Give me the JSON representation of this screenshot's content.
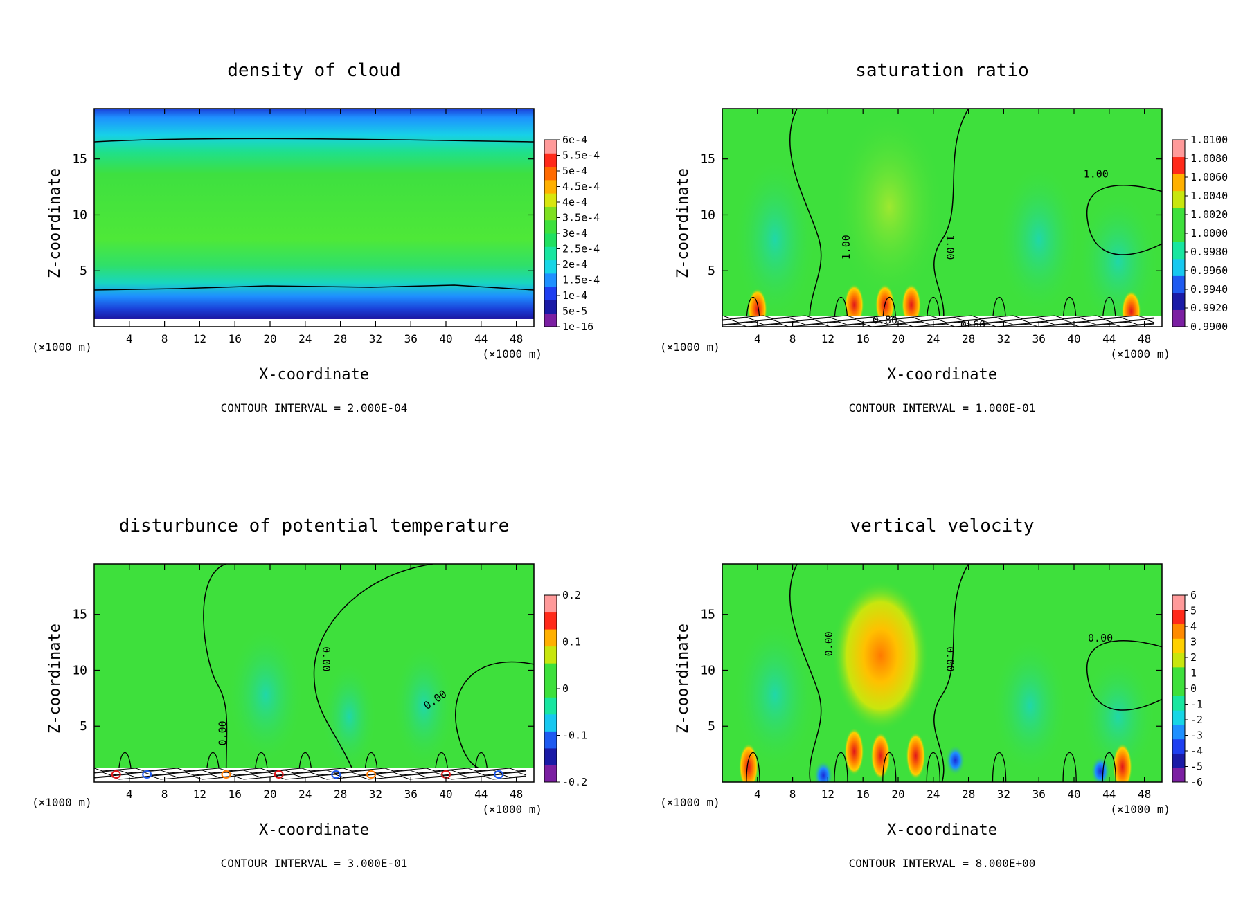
{
  "chart_data": [
    {
      "type": "heatmap",
      "title": "density of cloud",
      "xlabel": "X-coordinate",
      "ylabel": "Z-coordinate",
      "x_unit": "(×1000 m)",
      "xlim": [
        0,
        50
      ],
      "ylim": [
        0,
        19.5
      ],
      "x_ticks": [
        4,
        8,
        12,
        16,
        20,
        24,
        28,
        32,
        36,
        40,
        44,
        48
      ],
      "y_ticks": [
        5,
        10,
        15
      ],
      "footer": "CONTOUR INTERVAL = 2.000E-04",
      "colorbar": {
        "labels": [
          "6e-4",
          "5.5e-4",
          "5e-4",
          "4.5e-4",
          "4e-4",
          "3.5e-4",
          "3e-4",
          "2.5e-4",
          "2e-4",
          "1.5e-4",
          "1e-4",
          "5e-5",
          "1e-16"
        ],
        "colors": [
          "#7b1fa2",
          "#1a1aa6",
          "#1e3ff0",
          "#1e90ff",
          "#17d6e6",
          "#18e6a0",
          "#20e060",
          "#3ee03c",
          "#7fe020",
          "#d8e60e",
          "#ffb000",
          "#ff6a00",
          "#ff2a1a",
          "#ff9a9a"
        ]
      }
    },
    {
      "type": "heatmap",
      "title": "saturation ratio",
      "xlabel": "X-coordinate",
      "ylabel": "Z-coordinate",
      "x_unit": "(×1000 m)",
      "xlim": [
        0,
        50
      ],
      "ylim": [
        0,
        19.5
      ],
      "x_ticks": [
        4,
        8,
        12,
        16,
        20,
        24,
        28,
        32,
        36,
        40,
        44,
        48
      ],
      "y_ticks": [
        5,
        10,
        15
      ],
      "footer": "CONTOUR INTERVAL = 1.000E-01",
      "contour_labels": [
        "1.00",
        "1.00",
        "1.00",
        "0.80",
        "0.60"
      ],
      "colorbar": {
        "labels": [
          "1.0100",
          "1.0080",
          "1.0060",
          "1.0040",
          "1.0020",
          "1.0000",
          "0.9980",
          "0.9960",
          "0.9940",
          "0.9920",
          "0.9900"
        ],
        "colors": [
          "#7b1fa2",
          "#1a1aa6",
          "#1e5af0",
          "#17c8f0",
          "#18e6a0",
          "#3ee03c",
          "#3ee03c",
          "#c8e60e",
          "#ffb000",
          "#ff2a1a",
          "#ff9a9a"
        ]
      }
    },
    {
      "type": "heatmap",
      "title": "disturbunce of potential temperature",
      "xlabel": "X-coordinate",
      "ylabel": "Z-coordinate",
      "x_unit": "(×1000 m)",
      "xlim": [
        0,
        50
      ],
      "ylim": [
        0,
        19.5
      ],
      "x_ticks": [
        4,
        8,
        12,
        16,
        20,
        24,
        28,
        32,
        36,
        40,
        44,
        48
      ],
      "y_ticks": [
        5,
        10,
        15
      ],
      "footer": "CONTOUR INTERVAL = 3.000E-01",
      "contour_labels": [
        "0.00",
        "0.00",
        "0.00"
      ],
      "colorbar": {
        "labels": [
          "0.2",
          "0.1",
          "0",
          "-0.1",
          "-0.2"
        ],
        "colors": [
          "#7b1fa2",
          "#1a1aa6",
          "#1e5af0",
          "#17c8f0",
          "#18e6a0",
          "#3ee03c",
          "#3ee03c",
          "#c8e60e",
          "#ffb000",
          "#ff2a1a",
          "#ff9a9a"
        ]
      }
    },
    {
      "type": "heatmap",
      "title": "vertical velocity",
      "xlabel": "X-coordinate",
      "ylabel": "Z-coordinate",
      "x_unit": "(×1000 m)",
      "xlim": [
        0,
        50
      ],
      "ylim": [
        0,
        19.5
      ],
      "x_ticks": [
        4,
        8,
        12,
        16,
        20,
        24,
        28,
        32,
        36,
        40,
        44,
        48
      ],
      "y_ticks": [
        5,
        10,
        15
      ],
      "footer": "CONTOUR INTERVAL = 8.000E+00",
      "contour_labels": [
        "0.00",
        "0.00",
        "0.00"
      ],
      "colorbar": {
        "labels": [
          "6",
          "5",
          "4",
          "3",
          "2",
          "1",
          "0",
          "-1",
          "-2",
          "-3",
          "-4",
          "-5",
          "-6"
        ],
        "colors": [
          "#7b1fa2",
          "#1a1aa6",
          "#1e3ff0",
          "#1e90ff",
          "#17d6e6",
          "#18e6a0",
          "#3ee03c",
          "#3ee03c",
          "#c8e60e",
          "#ffd000",
          "#ff8a00",
          "#ff2a1a",
          "#ff9a9a"
        ]
      }
    }
  ]
}
